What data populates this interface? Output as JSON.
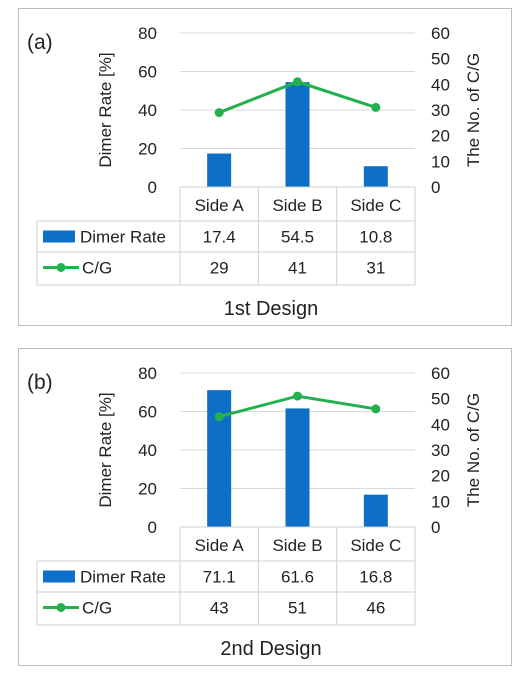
{
  "chart_data": [
    {
      "type": "bar",
      "panel_label": "(a)",
      "title": "1st Design",
      "categories": [
        "Side A",
        "Side B",
        "Side C"
      ],
      "ylabel": "Dimer Rate [%]",
      "y2label": "The No. of C/G",
      "ylim": [
        0,
        80
      ],
      "yticks": [
        0,
        20,
        40,
        60,
        80
      ],
      "y2lim": [
        0,
        60
      ],
      "y2ticks": [
        0,
        10,
        20,
        30,
        40,
        50,
        60
      ],
      "grid": true,
      "series": [
        {
          "name": "Dimer Rate",
          "type": "bar",
          "axis": "left",
          "color": "#0e6fc7",
          "values": [
            17.4,
            54.5,
            10.8
          ]
        },
        {
          "name": "C/G",
          "type": "line",
          "axis": "right",
          "color": "#22b14c",
          "values": [
            29,
            41,
            31
          ]
        }
      ]
    },
    {
      "type": "bar",
      "panel_label": "(b)",
      "title": "2nd Design",
      "categories": [
        "Side A",
        "Side B",
        "Side C"
      ],
      "ylabel": "Dimer Rate [%]",
      "y2label": "The No. of C/G",
      "ylim": [
        0,
        80
      ],
      "yticks": [
        0,
        20,
        40,
        60,
        80
      ],
      "y2lim": [
        0,
        60
      ],
      "y2ticks": [
        0,
        10,
        20,
        30,
        40,
        50,
        60
      ],
      "grid": true,
      "series": [
        {
          "name": "Dimer Rate",
          "type": "bar",
          "axis": "left",
          "color": "#0e6fc7",
          "values": [
            71.1,
            61.6,
            16.8
          ]
        },
        {
          "name": "C/G",
          "type": "line",
          "axis": "right",
          "color": "#22b14c",
          "values": [
            43,
            51,
            46
          ]
        }
      ]
    }
  ]
}
